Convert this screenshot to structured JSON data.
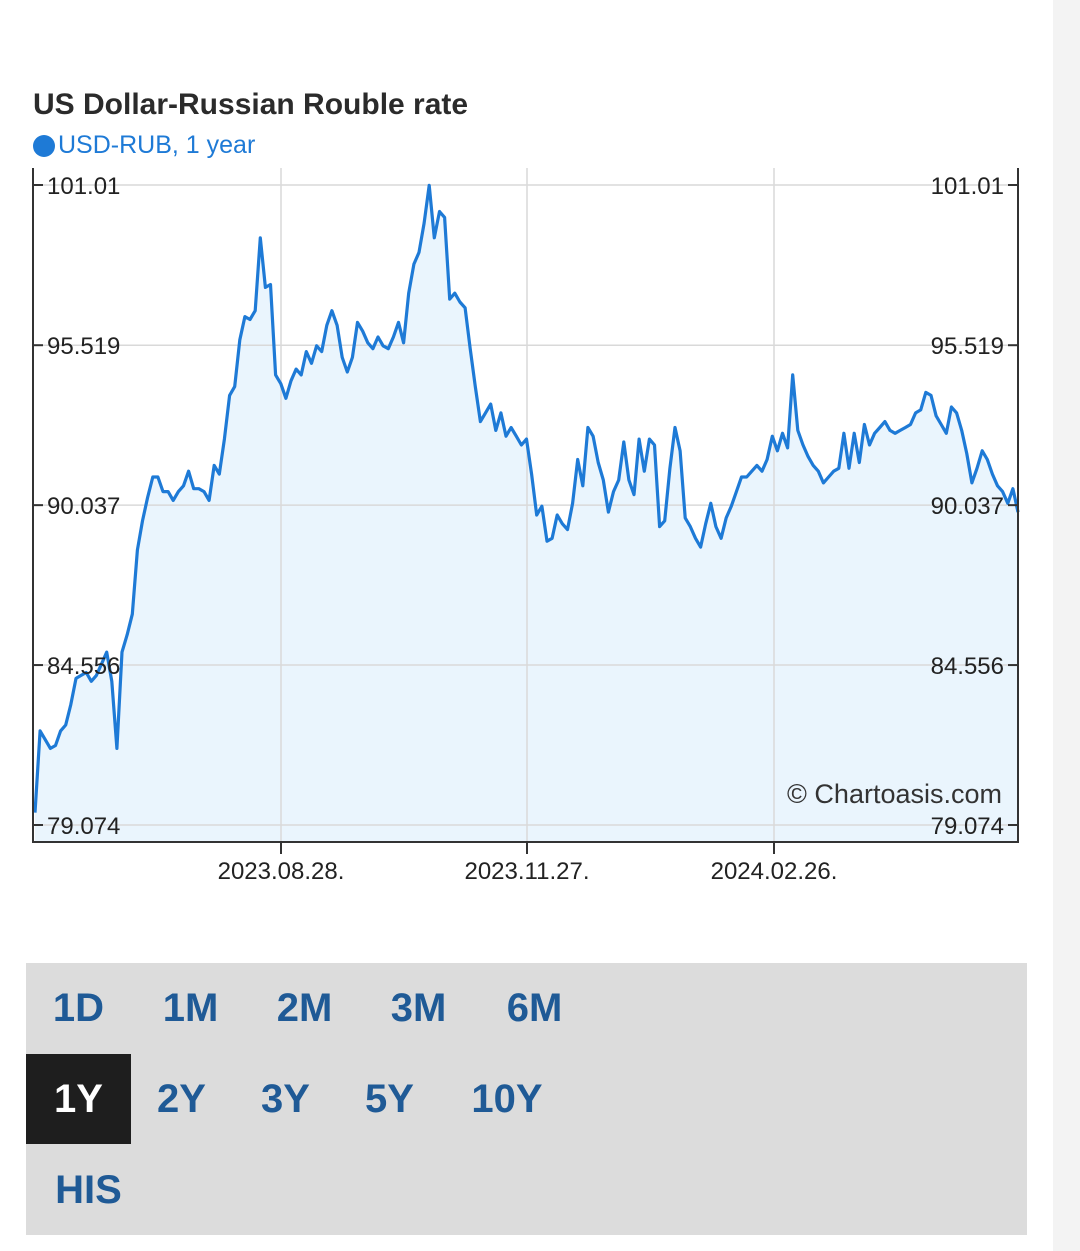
{
  "title": "US Dollar-Russian Rouble rate",
  "legend": {
    "label": "USD-RUB, 1 year"
  },
  "watermark": "© Chartoasis.com",
  "colors": {
    "line": "#1e7ad6",
    "area": "#eaf5fd",
    "grid": "#d9d9d9",
    "active_button": "#1e1e1e",
    "button_text": "#1f5a96",
    "panel": "#dcdcdc"
  },
  "chart_data": {
    "type": "area",
    "series": [
      {
        "name": "USD-RUB",
        "values": [
          79.5,
          82.3,
          82.0,
          81.7,
          81.8,
          82.3,
          82.5,
          83.2,
          84.1,
          84.2,
          84.3,
          84.0,
          84.2,
          84.6,
          85.0,
          84.0,
          81.7,
          85.0,
          85.6,
          86.3,
          88.5,
          89.5,
          90.3,
          91.0,
          91.0,
          90.5,
          90.5,
          90.2,
          90.5,
          90.7,
          91.2,
          90.6,
          90.6,
          90.5,
          90.2,
          91.4,
          91.1,
          92.3,
          93.8,
          94.1,
          95.7,
          96.5,
          96.4,
          96.7,
          99.2,
          97.5,
          97.6,
          94.5,
          94.2,
          93.7,
          94.3,
          94.7,
          94.5,
          95.3,
          94.9,
          95.5,
          95.3,
          96.2,
          96.7,
          96.2,
          95.1,
          94.6,
          95.1,
          96.3,
          96.0,
          95.6,
          95.4,
          95.8,
          95.5,
          95.4,
          95.8,
          96.3,
          95.6,
          97.3,
          98.3,
          98.7,
          99.7,
          101.0,
          99.2,
          100.1,
          99.9,
          97.1,
          97.3,
          97.0,
          96.8,
          95.4,
          94.1,
          92.9,
          93.2,
          93.5,
          92.6,
          93.2,
          92.4,
          92.7,
          92.4,
          92.1,
          92.3,
          91.1,
          89.7,
          90.0,
          88.8,
          88.9,
          89.7,
          89.4,
          89.2,
          90.1,
          91.6,
          90.7,
          92.7,
          92.4,
          91.5,
          90.9,
          89.8,
          90.5,
          90.9,
          92.2,
          90.9,
          90.4,
          92.3,
          91.2,
          92.3,
          92.1,
          89.3,
          89.5,
          91.3,
          92.7,
          91.9,
          89.6,
          89.3,
          88.9,
          88.6,
          89.4,
          90.1,
          89.3,
          88.9,
          89.6,
          90.0,
          90.5,
          91.0,
          91.0,
          91.2,
          91.4,
          91.2,
          91.6,
          92.4,
          91.9,
          92.5,
          92.0,
          94.5,
          92.6,
          92.1,
          91.7,
          91.4,
          91.2,
          90.8,
          91.0,
          91.2,
          91.3,
          92.5,
          91.3,
          92.5,
          91.5,
          92.8,
          92.1,
          92.5,
          92.7,
          92.9,
          92.6,
          92.5,
          92.6,
          92.7,
          92.8,
          93.2,
          93.3,
          93.9,
          93.8,
          93.1,
          92.8,
          92.5,
          93.4,
          93.2,
          92.6,
          91.8,
          90.8,
          91.3,
          91.9,
          91.6,
          91.1,
          90.7,
          90.5,
          90.1,
          90.6,
          89.8
        ]
      }
    ],
    "x_ticks": [
      "2023.08.28.",
      "2023.11.27.",
      "2024.02.26."
    ],
    "y_ticks": [
      "101.01",
      "95.519",
      "90.037",
      "84.556",
      "79.074"
    ],
    "ylim": [
      79.074,
      101.01
    ],
    "grid": true
  },
  "ranges": {
    "row1": [
      "1D",
      "1M",
      "2M",
      "3M",
      "6M"
    ],
    "row2": [
      "1Y",
      "2Y",
      "3Y",
      "5Y",
      "10Y"
    ],
    "row3": [
      "HIS"
    ],
    "active": "1Y"
  }
}
